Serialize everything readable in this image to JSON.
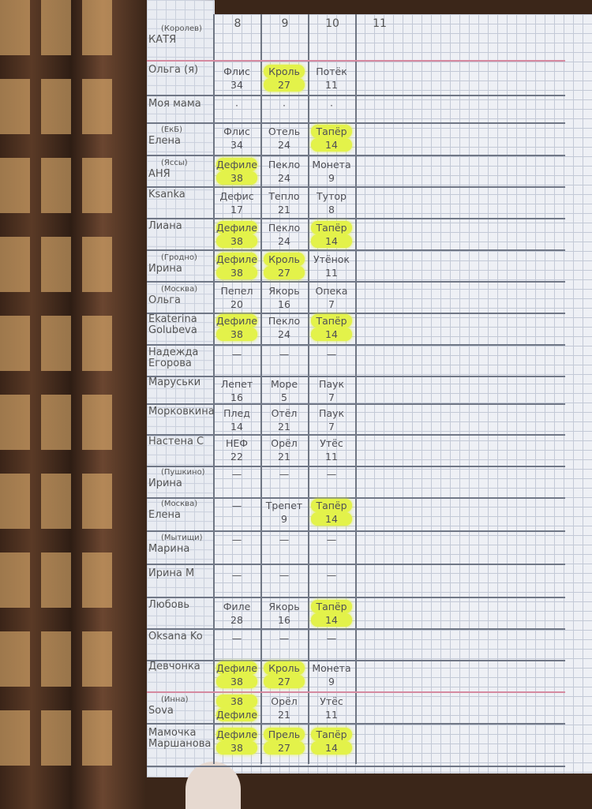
{
  "columns": [
    "8",
    "9",
    "10",
    "11"
  ],
  "highlight_color": "#e3f24a",
  "rows": [
    {
      "name": "КАТЯ",
      "note": "(Королев)",
      "cells": []
    },
    {
      "name": "Ольга (я)",
      "note": "",
      "cells": [
        {
          "w": "Флис",
          "n": "34"
        },
        {
          "w": "Кроль",
          "n": "27",
          "hl": true
        },
        {
          "w": "Потёк",
          "n": "11"
        }
      ]
    },
    {
      "name": "Моя мама",
      "note": "",
      "cells": [
        {
          "w": "·",
          "n": ""
        },
        {
          "w": "·",
          "n": ""
        },
        {
          "w": "·",
          "n": ""
        }
      ]
    },
    {
      "name": "Елена",
      "note": "(ЕкБ)",
      "cells": [
        {
          "w": "Флис",
          "n": "34"
        },
        {
          "w": "Отель",
          "n": "24"
        },
        {
          "w": "Тапёр",
          "n": "14",
          "hl": true
        }
      ]
    },
    {
      "name": "АНЯ",
      "note": "(Яссы)",
      "cells": [
        {
          "w": "Дефиле",
          "n": "38",
          "hl": true
        },
        {
          "w": "Пекло",
          "n": "24"
        },
        {
          "w": "Монета",
          "n": "9"
        }
      ]
    },
    {
      "name": "Ksanka",
      "note": "",
      "cells": [
        {
          "w": "Дефис",
          "n": "17"
        },
        {
          "w": "Тепло",
          "n": "21"
        },
        {
          "w": "Тутор",
          "n": "8"
        }
      ]
    },
    {
      "name": "Лиана",
      "note": "",
      "cells": [
        {
          "w": "Дефиле",
          "n": "38",
          "hl": true
        },
        {
          "w": "Пекло",
          "n": "24"
        },
        {
          "w": "Тапёр",
          "n": "14",
          "hl": true
        }
      ]
    },
    {
      "name": "Ирина",
      "note": "(Гродно)",
      "cells": [
        {
          "w": "Дефиле",
          "n": "38",
          "hl": true
        },
        {
          "w": "Кроль",
          "n": "27",
          "hl": true
        },
        {
          "w": "Утёнок",
          "n": "11"
        }
      ]
    },
    {
      "name": "Ольга",
      "note": "(Москва)",
      "cells": [
        {
          "w": "Пепел",
          "n": "20"
        },
        {
          "w": "Якорь",
          "n": "16"
        },
        {
          "w": "Опека",
          "n": "7"
        }
      ]
    },
    {
      "name": "Ekaterina Golubeva",
      "note": "",
      "cells": [
        {
          "w": "Дефиле",
          "n": "38",
          "hl": true
        },
        {
          "w": "Пекло",
          "n": "24"
        },
        {
          "w": "Тапёр",
          "n": "14",
          "hl": true
        }
      ]
    },
    {
      "name": "Надежда Егорова",
      "note": "",
      "cells": [
        {
          "w": "—",
          "n": ""
        },
        {
          "w": "—",
          "n": ""
        },
        {
          "w": "—",
          "n": ""
        }
      ]
    },
    {
      "name": "Маруськи",
      "note": "",
      "cells": [
        {
          "w": "Лепет",
          "n": "16"
        },
        {
          "w": "Море",
          "n": "5"
        },
        {
          "w": "Паук",
          "n": "7"
        }
      ]
    },
    {
      "name": "Морковкина",
      "note": "",
      "cells": [
        {
          "w": "Плед",
          "n": "14"
        },
        {
          "w": "Отёл",
          "n": "21"
        },
        {
          "w": "Паук",
          "n": "7"
        }
      ]
    },
    {
      "name": "Настена С",
      "note": "",
      "cells": [
        {
          "w": "НЕФ",
          "n": "22"
        },
        {
          "w": "Орёл",
          "n": "21"
        },
        {
          "w": "Утёс",
          "n": "11"
        }
      ]
    },
    {
      "name": "Ирина",
      "note": "(Пушкино)",
      "cells": [
        {
          "w": "—",
          "n": ""
        },
        {
          "w": "—",
          "n": ""
        },
        {
          "w": "—",
          "n": ""
        }
      ]
    },
    {
      "name": "Елена",
      "note": "(Москва)",
      "cells": [
        {
          "w": "—",
          "n": ""
        },
        {
          "w": "Трепет",
          "n": "9"
        },
        {
          "w": "Тапёр",
          "n": "14",
          "hl": true
        }
      ]
    },
    {
      "name": "Марина",
      "note": "(Мытищи)",
      "cells": [
        {
          "w": "—",
          "n": ""
        },
        {
          "w": "—",
          "n": ""
        },
        {
          "w": "—",
          "n": ""
        }
      ]
    },
    {
      "name": "Ирина М",
      "note": "",
      "cells": [
        {
          "w": "—",
          "n": ""
        },
        {
          "w": "—",
          "n": ""
        },
        {
          "w": "—",
          "n": ""
        }
      ]
    },
    {
      "name": "Любовь",
      "note": "",
      "cells": [
        {
          "w": "Филе",
          "n": "28"
        },
        {
          "w": "Якорь",
          "n": "16"
        },
        {
          "w": "Тапёр",
          "n": "14",
          "hl": true
        }
      ]
    },
    {
      "name": "Oksana Ko",
      "note": "",
      "cells": [
        {
          "w": "—",
          "n": ""
        },
        {
          "w": "—",
          "n": ""
        },
        {
          "w": "—",
          "n": ""
        }
      ]
    },
    {
      "name": "Девчонка",
      "note": "",
      "cells": [
        {
          "w": "Дефиле",
          "n": "38",
          "hl": true
        },
        {
          "w": "Кроль",
          "n": "27",
          "hl": true
        },
        {
          "w": "Монета",
          "n": "9"
        }
      ]
    },
    {
      "name": "Sova",
      "note": "(Инна)",
      "cells": [
        {
          "w": "38",
          "n": "Дефиле",
          "hl": true
        },
        {
          "w": "Орёл",
          "n": "21"
        },
        {
          "w": "Утёс",
          "n": "11"
        }
      ]
    },
    {
      "name": "Мамочка Маршанова",
      "note": "",
      "cells": [
        {
          "w": "Дефиле",
          "n": "38",
          "hl": true
        },
        {
          "w": "Прель",
          "n": "27",
          "hl": true
        },
        {
          "w": "Тапёр",
          "n": "14",
          "hl": true
        }
      ]
    }
  ]
}
